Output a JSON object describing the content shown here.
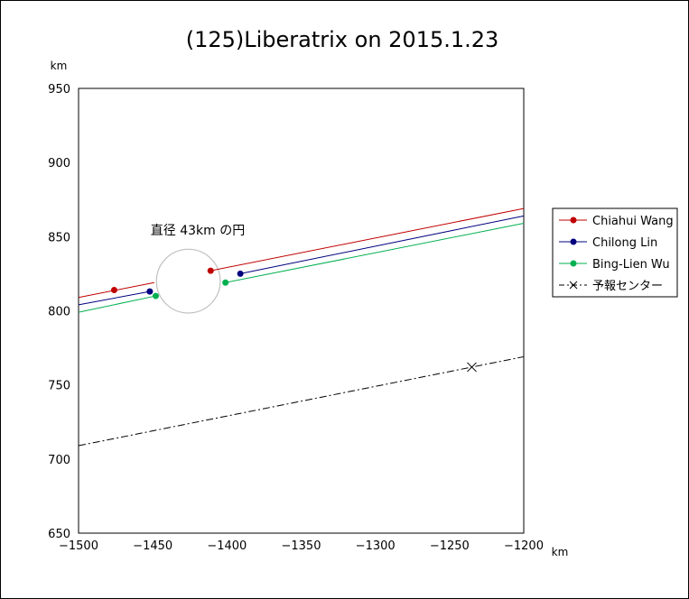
{
  "chart_data": {
    "type": "line",
    "title": "(125)Liberatrix on 2015.1.23",
    "xlabel": "km",
    "ylabel": "km",
    "xlim": [
      -1500,
      -1200
    ],
    "ylim": [
      650,
      950
    ],
    "xticks": [
      -1500,
      -1450,
      -1400,
      -1350,
      -1300,
      -1250,
      -1200
    ],
    "yticks": [
      650,
      700,
      750,
      800,
      850,
      900,
      950
    ],
    "grid": false,
    "legend_position": "right",
    "annotation": "直径 43km の円",
    "circle": {
      "center": [
        -1426,
        820
      ],
      "diameter_km": 43
    },
    "series": [
      {
        "name": "Chiahui Wang",
        "color": "#c00000",
        "style": "solid",
        "segments": [
          [
            [
              -1500,
              809
            ],
            [
              -1449,
              819
            ]
          ],
          [
            [
              -1411,
              827
            ],
            [
              -1200,
              869
            ]
          ]
        ],
        "points": [
          [
            -1476,
            814
          ],
          [
            -1411,
            827
          ]
        ]
      },
      {
        "name": "Chilong Lin",
        "color": "#00007f",
        "style": "solid",
        "segments": [
          [
            [
              -1500,
              804
            ],
            [
              -1452,
              813
            ]
          ],
          [
            [
              -1391,
              825
            ],
            [
              -1200,
              864
            ]
          ]
        ],
        "points": [
          [
            -1452,
            813
          ],
          [
            -1391,
            825
          ]
        ]
      },
      {
        "name": "Bing-Lien Wu",
        "color": "#00b050",
        "style": "solid",
        "segments": [
          [
            [
              -1500,
              799
            ],
            [
              -1448,
              810
            ]
          ],
          [
            [
              -1401,
              819
            ],
            [
              -1200,
              859
            ]
          ]
        ],
        "points": [
          [
            -1448,
            810
          ],
          [
            -1401,
            819
          ]
        ]
      },
      {
        "name": "予報センター",
        "color": "#000000",
        "style": "dashdot",
        "segments": [
          [
            [
              -1500,
              709
            ],
            [
              -1200,
              769
            ]
          ]
        ],
        "marker": "x",
        "points": [
          [
            -1235,
            762
          ]
        ]
      }
    ]
  }
}
